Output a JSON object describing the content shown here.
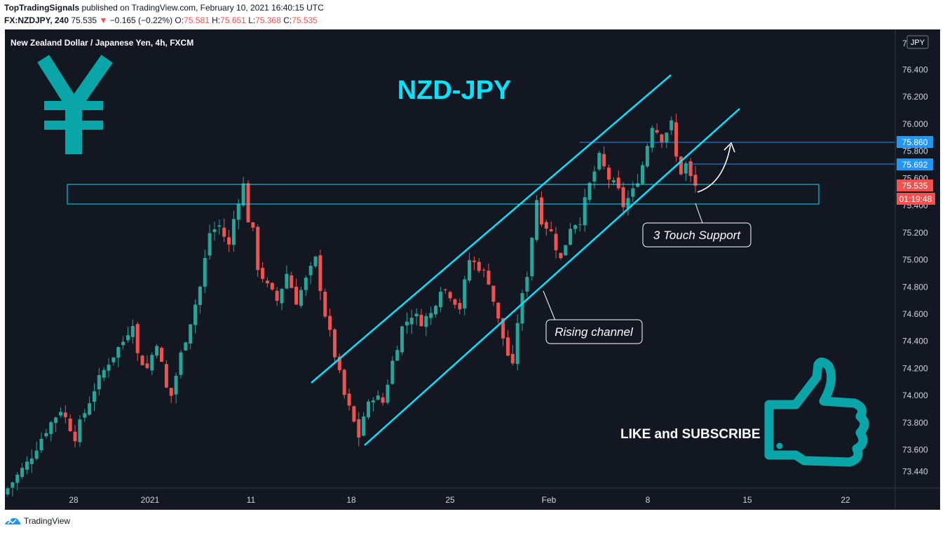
{
  "header": {
    "author": "TopTradingSignals",
    "published_text": " published on TradingView.com, February 10, 2021 16:40:15 UTC",
    "symbol": "FX:NZDJPY, 240",
    "last": "75.535",
    "arrow": "▼",
    "change": "−0.165 (−0.22%)",
    "open_label": "O:",
    "open": "75.581",
    "high_label": "H:",
    "high": "75.651",
    "low_label": "L:",
    "low": "75.368",
    "close_label": "C:",
    "close": "75.535"
  },
  "chart": {
    "instrument_title": "New Zealand Dollar / Japanese Yen, 4h, FXCM",
    "big_title": "NZD-JPY",
    "currency_badge": "JPY",
    "currency_icon": "yen-icon",
    "promo_text": "LIKE and SUBSCRIBE",
    "promo_icon": "thumbs-up-icon",
    "annotations": {
      "support": "3 Touch Support",
      "channel": "Rising channel"
    },
    "price_labels": {
      "level_high": "75.860",
      "level_low": "75.692",
      "current": "75.535",
      "countdown": "01:19:48"
    },
    "colors": {
      "background": "#131722",
      "up": "#26a69a",
      "down": "#ef5350",
      "channel": "#00e5ff",
      "level": "#2196f3",
      "accent": "#00d9e6"
    }
  },
  "footer": {
    "brand": "TradingView"
  },
  "chart_data": {
    "type": "candlestick",
    "title": "New Zealand Dollar / Japanese Yen, 4h, FXCM",
    "ylim": [
      73.3,
      76.7
    ],
    "y_ticks": [
      "76.400",
      "76.200",
      "76.000",
      "75.800",
      "75.600",
      "75.400",
      "75.200",
      "75.000",
      "74.800",
      "74.600",
      "74.400",
      "74.200",
      "74.000",
      "73.800",
      "73.600",
      "73.440"
    ],
    "x_ticks": [
      "28",
      "2021",
      "11",
      "18",
      "25",
      "Feb",
      "8",
      "15",
      "22"
    ],
    "levels": [
      75.86,
      75.692
    ],
    "support_zone": [
      75.39,
      75.54
    ],
    "close_path": [
      [
        0,
        73.32
      ],
      [
        4,
        73.5
      ],
      [
        8,
        73.75
      ],
      [
        11,
        73.9
      ],
      [
        14,
        73.7
      ],
      [
        18,
        74.05
      ],
      [
        21,
        74.25
      ],
      [
        24,
        74.4
      ],
      [
        26,
        74.55
      ],
      [
        27,
        74.3
      ],
      [
        29,
        74.2
      ],
      [
        31,
        74.4
      ],
      [
        33,
        74.05
      ],
      [
        34,
        74.0
      ],
      [
        36,
        74.3
      ],
      [
        38,
        74.55
      ],
      [
        40,
        74.8
      ],
      [
        42,
        75.2
      ],
      [
        44,
        75.25
      ],
      [
        46,
        75.1
      ],
      [
        47,
        75.3
      ],
      [
        48,
        75.45
      ],
      [
        49,
        75.55
      ],
      [
        50,
        75.3
      ],
      [
        51,
        75.2
      ],
      [
        52,
        74.95
      ],
      [
        54,
        74.8
      ],
      [
        56,
        74.7
      ],
      [
        58,
        74.9
      ],
      [
        60,
        74.7
      ],
      [
        62,
        74.85
      ],
      [
        64,
        75.0
      ],
      [
        66,
        74.6
      ],
      [
        68,
        74.3
      ],
      [
        70,
        74.0
      ],
      [
        72,
        73.8
      ],
      [
        73,
        73.7
      ],
      [
        74,
        73.85
      ],
      [
        76,
        74.0
      ],
      [
        78,
        73.95
      ],
      [
        80,
        74.25
      ],
      [
        82,
        74.5
      ],
      [
        84,
        74.6
      ],
      [
        86,
        74.55
      ],
      [
        88,
        74.6
      ],
      [
        90,
        74.8
      ],
      [
        92,
        74.75
      ],
      [
        94,
        74.65
      ],
      [
        96,
        75.0
      ],
      [
        98,
        74.95
      ],
      [
        100,
        74.85
      ],
      [
        102,
        74.55
      ],
      [
        104,
        74.3
      ],
      [
        105,
        74.2
      ],
      [
        106,
        74.55
      ],
      [
        108,
        74.9
      ],
      [
        110,
        75.45
      ],
      [
        111,
        75.3
      ],
      [
        113,
        75.2
      ],
      [
        115,
        75.0
      ],
      [
        117,
        75.25
      ],
      [
        119,
        75.3
      ],
      [
        121,
        75.55
      ],
      [
        123,
        75.75
      ],
      [
        125,
        75.6
      ],
      [
        127,
        75.5
      ],
      [
        128,
        75.4
      ],
      [
        130,
        75.5
      ],
      [
        132,
        75.7
      ],
      [
        134,
        76.0
      ],
      [
        136,
        75.9
      ],
      [
        138,
        76.0
      ],
      [
        139,
        75.75
      ],
      [
        140,
        75.65
      ],
      [
        141,
        75.7
      ],
      [
        142,
        75.6
      ],
      [
        143,
        75.54
      ]
    ]
  }
}
